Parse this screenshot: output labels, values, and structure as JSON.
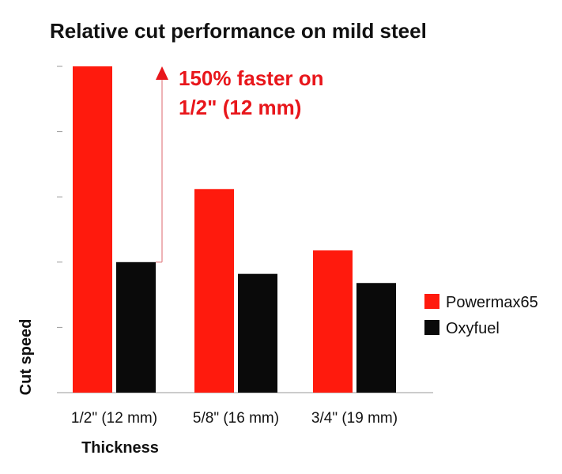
{
  "chart_data": {
    "type": "bar",
    "title": "Relative cut performance on mild steel",
    "xlabel": "Thickness",
    "ylabel": "Cut speed",
    "categories": [
      "1/2\" (12 mm)",
      "5/8\" (16 mm)",
      "3/4\" (19 mm)"
    ],
    "series": [
      {
        "name": "Powermax65",
        "color": "#ff1a0d",
        "values": [
          250,
          156,
          109
        ]
      },
      {
        "name": "Oxyfuel",
        "color": "#0a0a0a",
        "values": [
          100,
          91,
          84
        ]
      }
    ],
    "ylim": [
      0,
      250
    ],
    "y_ticks": [
      0,
      50,
      100,
      150,
      200,
      250
    ],
    "y_tick_labels_shown": false,
    "grid": false,
    "legend_position": "right",
    "annotation": {
      "lines": [
        "150% faster on",
        "1/2\" (12 mm)"
      ],
      "color": "#e8161b",
      "arrow_color": "#e58a8f",
      "category_index": 0
    }
  }
}
